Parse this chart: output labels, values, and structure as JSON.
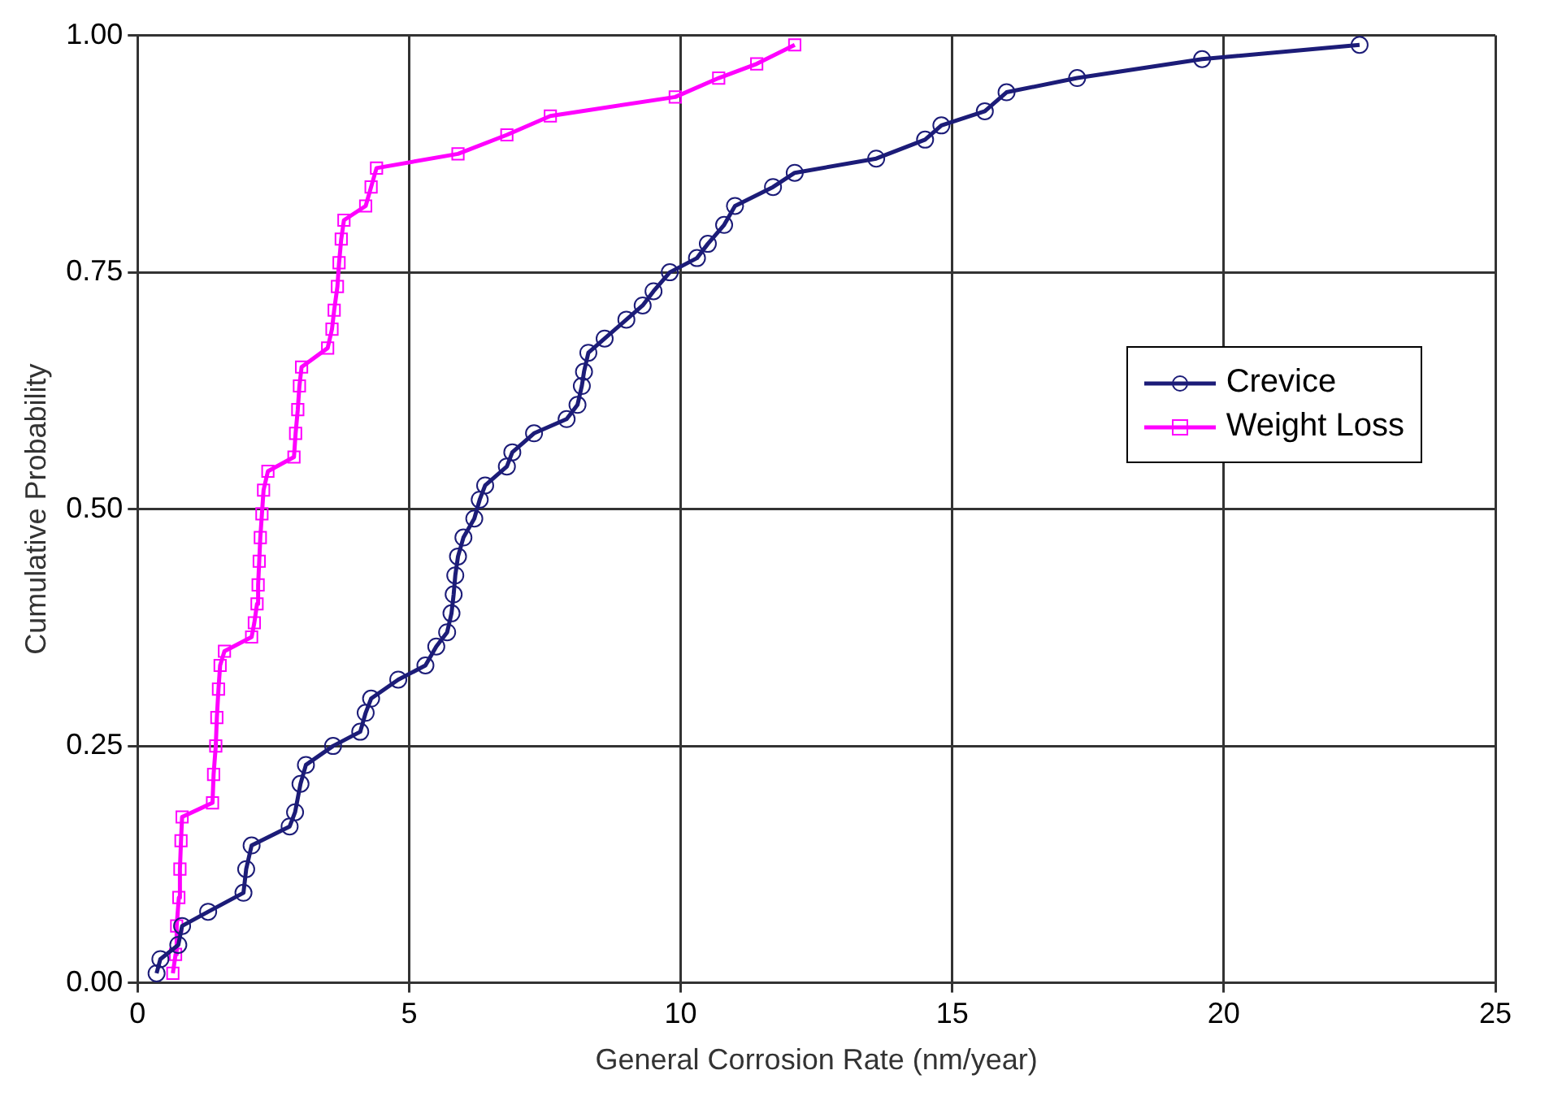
{
  "chart_data": {
    "type": "line",
    "xlabel": "General Corrosion Rate (nm/year)",
    "ylabel": "Cumulative Probability",
    "xlim": [
      0,
      25
    ],
    "xticks": [
      0,
      5,
      10,
      15,
      20,
      25
    ],
    "ylim": [
      0,
      1
    ],
    "yticks": [
      {
        "value": 0,
        "label": "0.00"
      },
      {
        "value": 0.25,
        "label": "0.25"
      },
      {
        "value": 0.5,
        "label": "0.50"
      },
      {
        "value": 0.75,
        "label": "0.75"
      },
      {
        "value": 1,
        "label": "1.00"
      }
    ],
    "grid": true,
    "legend": "right",
    "line_style": "solid",
    "series": [
      {
        "name": "Crevice",
        "color": "#1c1c78",
        "marker": "circle",
        "x": [
          0.35,
          0.42,
          0.75,
          0.82,
          1.3,
          1.95,
          2.0,
          2.1,
          2.8,
          2.9,
          3.0,
          3.1,
          3.6,
          4.1,
          4.2,
          4.3,
          4.8,
          5.3,
          5.5,
          5.7,
          5.78,
          5.82,
          5.85,
          5.9,
          6.0,
          6.2,
          6.3,
          6.4,
          6.8,
          6.9,
          7.3,
          7.9,
          8.1,
          8.18,
          8.22,
          8.3,
          8.6,
          9.0,
          9.3,
          9.5,
          9.8,
          10.3,
          10.5,
          10.8,
          11.0,
          11.7,
          12.1,
          13.6,
          14.5,
          14.8,
          15.6,
          16.0,
          17.3,
          19.6,
          22.5
        ],
        "values": [
          0.01,
          0.025,
          0.04,
          0.06,
          0.075,
          0.095,
          0.12,
          0.145,
          0.165,
          0.18,
          0.21,
          0.23,
          0.25,
          0.265,
          0.285,
          0.3,
          0.32,
          0.335,
          0.355,
          0.37,
          0.39,
          0.41,
          0.43,
          0.45,
          0.47,
          0.49,
          0.51,
          0.525,
          0.545,
          0.56,
          0.58,
          0.595,
          0.61,
          0.63,
          0.645,
          0.665,
          0.68,
          0.7,
          0.715,
          0.73,
          0.75,
          0.765,
          0.78,
          0.8,
          0.82,
          0.84,
          0.855,
          0.87,
          0.89,
          0.905,
          0.92,
          0.94,
          0.955,
          0.975,
          0.99
        ]
      },
      {
        "name": "Weight Loss",
        "color": "#ff00ff",
        "marker": "square",
        "x": [
          0.65,
          0.7,
          0.72,
          0.76,
          0.78,
          0.8,
          0.82,
          1.38,
          1.4,
          1.44,
          1.46,
          1.49,
          1.52,
          1.6,
          2.1,
          2.15,
          2.2,
          2.22,
          2.24,
          2.26,
          2.29,
          2.32,
          2.4,
          2.88,
          2.91,
          2.95,
          2.98,
          3.02,
          3.5,
          3.58,
          3.62,
          3.68,
          3.71,
          3.75,
          3.8,
          4.2,
          4.3,
          4.4,
          5.9,
          6.8,
          7.6,
          9.9,
          10.7,
          11.4,
          12.1
        ],
        "values": [
          0.01,
          0.03,
          0.06,
          0.09,
          0.12,
          0.15,
          0.175,
          0.19,
          0.22,
          0.25,
          0.28,
          0.31,
          0.335,
          0.35,
          0.365,
          0.38,
          0.4,
          0.42,
          0.445,
          0.47,
          0.495,
          0.52,
          0.54,
          0.555,
          0.58,
          0.605,
          0.63,
          0.65,
          0.67,
          0.69,
          0.71,
          0.735,
          0.76,
          0.785,
          0.805,
          0.82,
          0.84,
          0.86,
          0.875,
          0.895,
          0.915,
          0.935,
          0.955,
          0.97,
          0.99
        ]
      }
    ]
  }
}
